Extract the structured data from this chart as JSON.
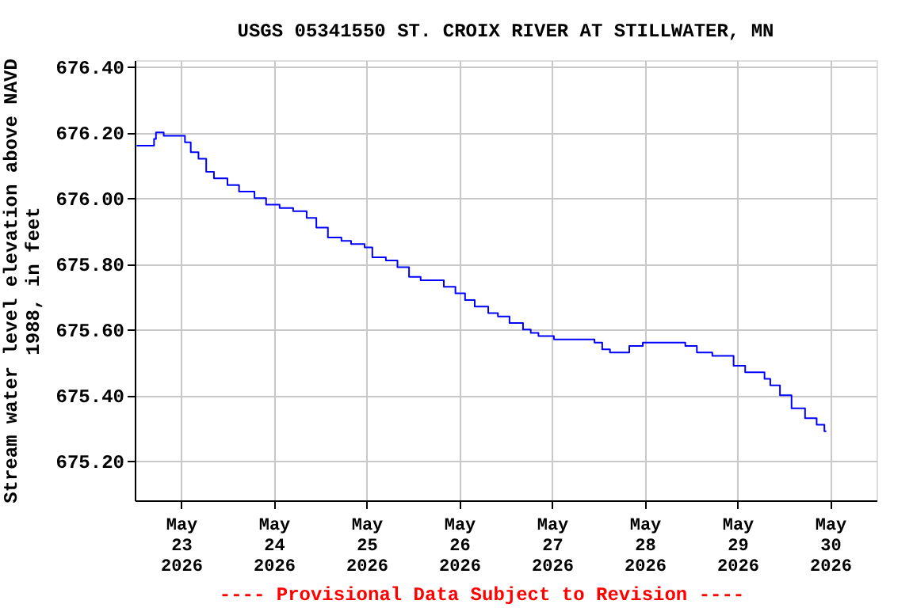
{
  "chart_data": {
    "type": "step",
    "title": "USGS 05341550 ST. CROIX RIVER AT STILLWATER, MN",
    "ylabel": "Stream water level elevation above NAVD\n1988, in feet",
    "annotations": [
      "---- Provisional Data Subject to Revision ----"
    ],
    "x": [
      "2026-05-22T12:30",
      "2026-05-22T17:00",
      "2026-05-22T17:30",
      "2026-05-22T19:30",
      "2026-05-22T23:00",
      "2026-05-23T01:00",
      "2026-05-23T02:30",
      "2026-05-23T04:30",
      "2026-05-23T06:30",
      "2026-05-23T08:30",
      "2026-05-23T12:00",
      "2026-05-23T15:00",
      "2026-05-23T19:00",
      "2026-05-23T22:00",
      "2026-05-24T01:30",
      "2026-05-24T05:00",
      "2026-05-24T08:30",
      "2026-05-24T11:00",
      "2026-05-24T14:00",
      "2026-05-24T17:30",
      "2026-05-24T20:00",
      "2026-05-24T23:30",
      "2026-05-25T01:30",
      "2026-05-25T05:00",
      "2026-05-25T08:00",
      "2026-05-25T11:00",
      "2026-05-25T14:00",
      "2026-05-25T16:30",
      "2026-05-25T20:00",
      "2026-05-25T23:00",
      "2026-05-26T01:30",
      "2026-05-26T04:00",
      "2026-05-26T07:30",
      "2026-05-26T10:00",
      "2026-05-26T13:00",
      "2026-05-26T16:30",
      "2026-05-26T18:30",
      "2026-05-26T20:30",
      "2026-05-27T00:30",
      "2026-05-27T05:00",
      "2026-05-27T11:00",
      "2026-05-27T13:00",
      "2026-05-27T15:00",
      "2026-05-27T18:30",
      "2026-05-27T20:00",
      "2026-05-27T23:30",
      "2026-05-28T05:30",
      "2026-05-28T10:30",
      "2026-05-28T13:30",
      "2026-05-28T17:30",
      "2026-05-28T21:00",
      "2026-05-28T23:00",
      "2026-05-29T02:00",
      "2026-05-29T05:00",
      "2026-05-29T07:00",
      "2026-05-29T08:30",
      "2026-05-29T11:00",
      "2026-05-29T14:00",
      "2026-05-29T17:30",
      "2026-05-29T20:30",
      "2026-05-29T22:30",
      "2026-05-29T23:00"
    ],
    "series": [
      {
        "color": "#0000ff",
        "values": [
          676.16,
          676.18,
          676.2,
          676.19,
          676.19,
          676.17,
          676.14,
          676.12,
          676.08,
          676.06,
          676.04,
          676.02,
          676.0,
          675.98,
          675.97,
          675.96,
          675.94,
          675.91,
          675.88,
          675.87,
          675.86,
          675.85,
          675.82,
          675.81,
          675.79,
          675.76,
          675.75,
          675.75,
          675.73,
          675.71,
          675.69,
          675.67,
          675.65,
          675.64,
          675.62,
          675.6,
          675.59,
          675.58,
          675.57,
          675.57,
          675.56,
          675.54,
          675.53,
          675.53,
          675.55,
          675.56,
          675.56,
          675.55,
          675.53,
          675.52,
          675.52,
          675.49,
          675.47,
          675.47,
          675.45,
          675.43,
          675.4,
          675.36,
          675.33,
          675.31,
          675.29,
          675.29
        ]
      }
    ],
    "xlim": [
      "2026-05-22T12:00",
      "2026-05-30T12:00"
    ],
    "xticks": [
      {
        "value": "2026-05-23",
        "label": "May\n23\n2026"
      },
      {
        "value": "2026-05-24",
        "label": "May\n24\n2026"
      },
      {
        "value": "2026-05-25",
        "label": "May\n25\n2026"
      },
      {
        "value": "2026-05-26",
        "label": "May\n26\n2026"
      },
      {
        "value": "2026-05-27",
        "label": "May\n27\n2026"
      },
      {
        "value": "2026-05-28",
        "label": "May\n28\n2026"
      },
      {
        "value": "2026-05-29",
        "label": "May\n29\n2026"
      },
      {
        "value": "2026-05-30",
        "label": "May\n30\n2026"
      }
    ],
    "ylim": [
      675.08,
      676.42
    ],
    "yticks": [
      {
        "value": 675.2,
        "label": "675.20"
      },
      {
        "value": 675.4,
        "label": "675.40"
      },
      {
        "value": 675.6,
        "label": "675.60"
      },
      {
        "value": 675.8,
        "label": "675.80"
      },
      {
        "value": 676.0,
        "label": "676.00"
      },
      {
        "value": 676.2,
        "label": "676.20"
      },
      {
        "value": 676.4,
        "label": "676.40"
      }
    ],
    "grid": true
  }
}
